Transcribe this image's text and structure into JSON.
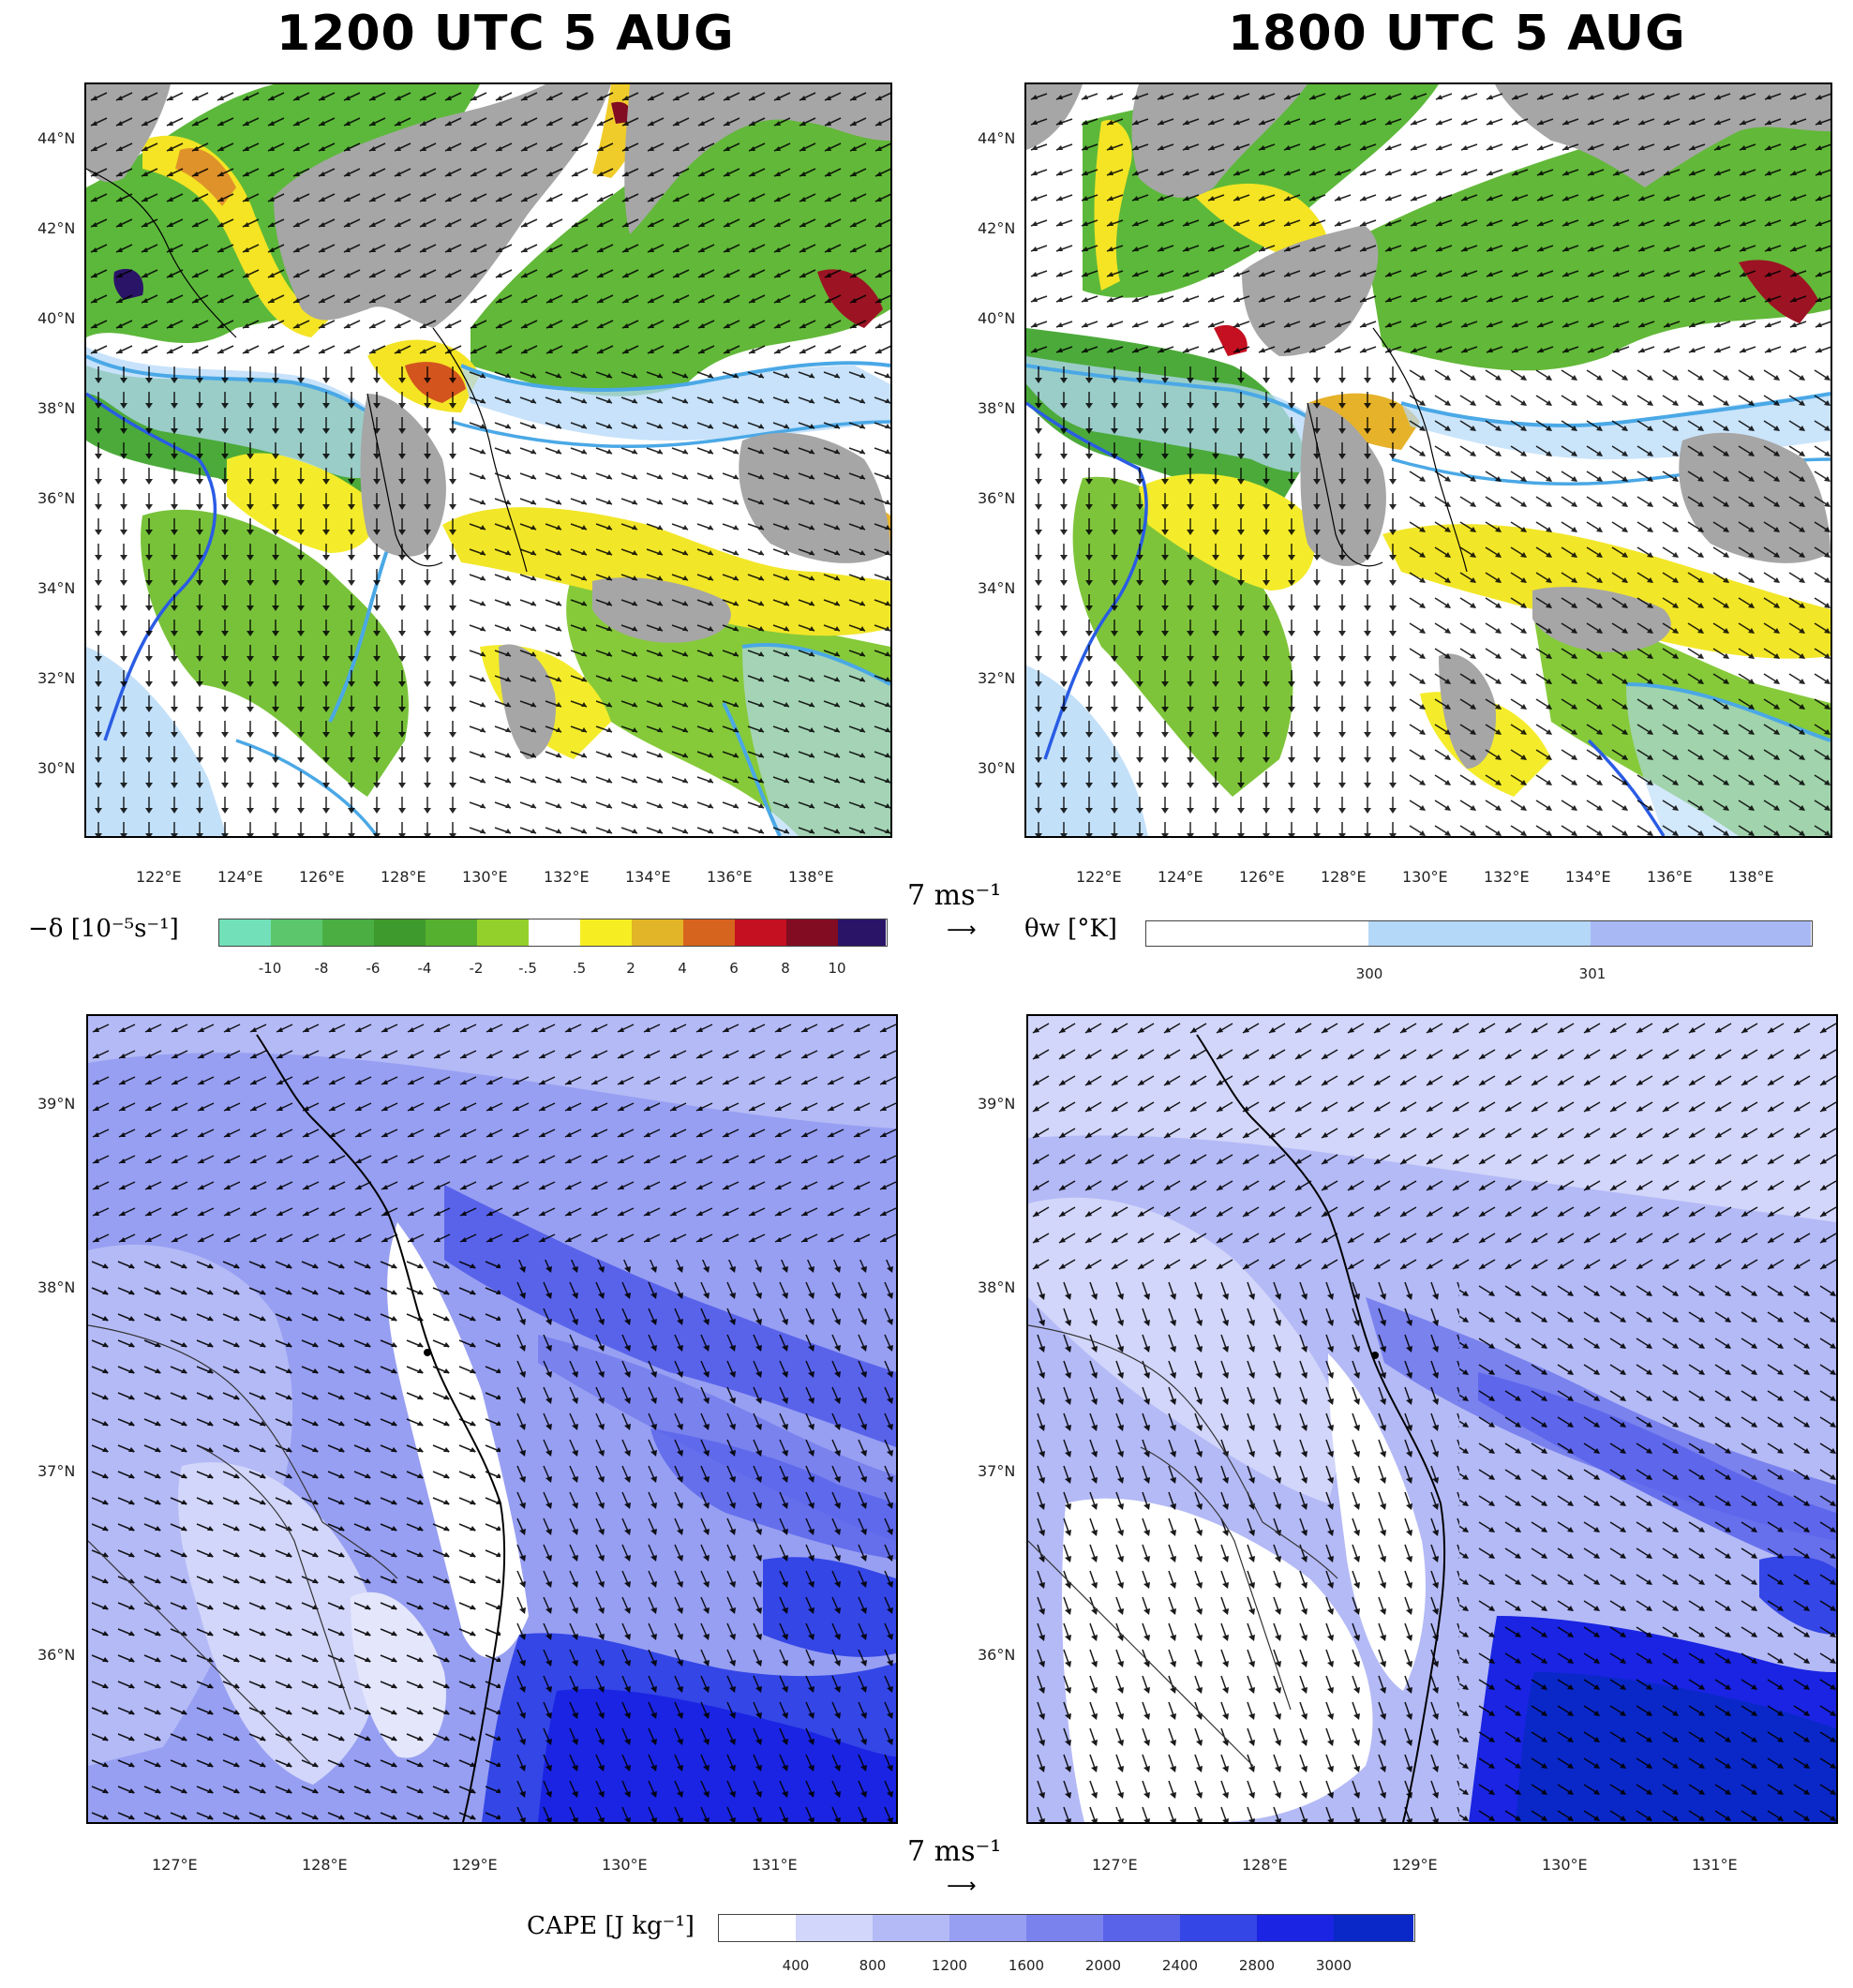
{
  "titles": {
    "left": "1200 UTC 5 AUG",
    "right": "1800 UTC 5 AUG"
  },
  "top_lat_ticks": [
    "44°N",
    "42°N",
    "40°N",
    "38°N",
    "36°N",
    "34°N",
    "32°N",
    "30°N"
  ],
  "top_lon_ticks": [
    "122°E",
    "124°E",
    "126°E",
    "128°E",
    "130°E",
    "132°E",
    "134°E",
    "136°E",
    "138°E"
  ],
  "bottom_lat_ticks": [
    "39°N",
    "38°N",
    "37°N",
    "36°N"
  ],
  "bottom_lon_ticks": [
    "127°E",
    "128°E",
    "129°E",
    "130°E",
    "131°E"
  ],
  "reference_vector": {
    "label": "7 ms⁻¹",
    "arrow": "⟶"
  },
  "divergence_colorbar": {
    "label": "−δ [10⁻⁵s⁻¹]",
    "ticks": [
      "-10",
      "-8",
      "-6",
      "-4",
      "-2",
      "-.5",
      ".5",
      "2",
      "4",
      "6",
      "8",
      "10"
    ],
    "colors": [
      "#72e0b8",
      "#5cc66c",
      "#4aae42",
      "#3e9a2c",
      "#56b030",
      "#94d02c",
      "#ffffff",
      "#f6ee22",
      "#e2b428",
      "#d6641e",
      "#c41020",
      "#820c22",
      "#2a1468"
    ]
  },
  "theta_colorbar": {
    "label": "θw [°K]",
    "ticks": [
      "300",
      "301"
    ],
    "colors": [
      "#ffffff",
      "#b4d8f8",
      "#a8b8f4"
    ]
  },
  "cape_colorbar": {
    "label": "CAPE [J kg⁻¹]",
    "ticks": [
      "400",
      "800",
      "1200",
      "1600",
      "2000",
      "2400",
      "2800",
      "3000"
    ],
    "colors": [
      "#ffffff",
      "#d2d6fa",
      "#b4baf6",
      "#979ff2",
      "#7a82ee",
      "#5963ea",
      "#3446e6",
      "#1a24e2",
      "#0a28c8"
    ]
  },
  "colors": {
    "land": "#a6a6a6",
    "contour_light": "#4aa8e6",
    "contour_dark": "#2a5ce4"
  }
}
